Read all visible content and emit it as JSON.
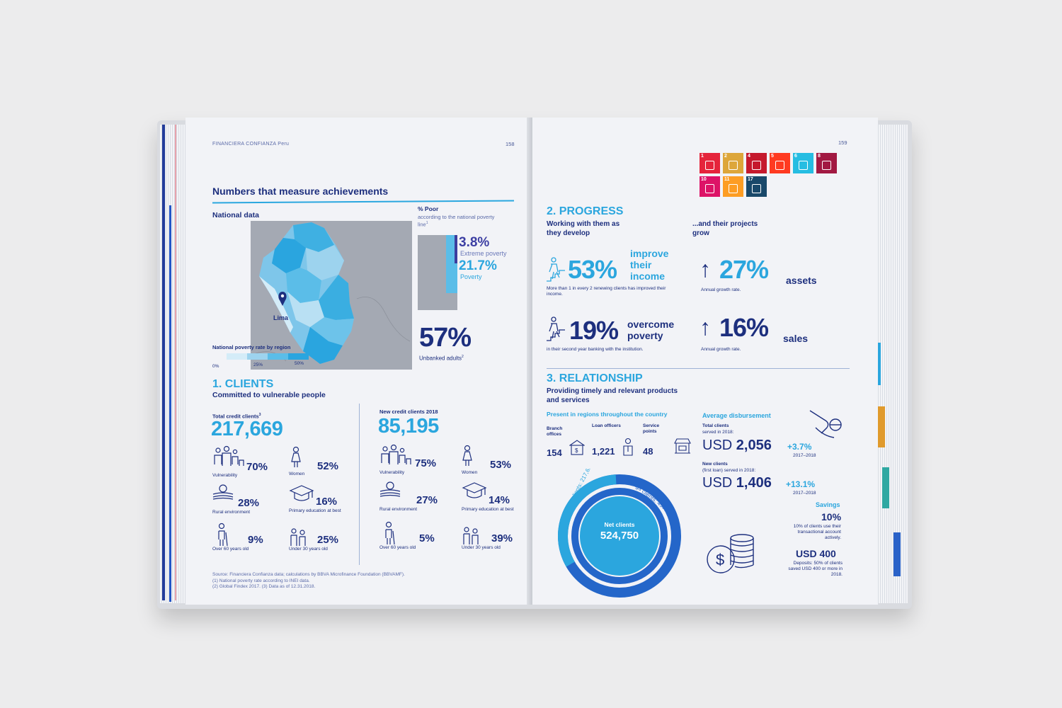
{
  "left_page": {
    "header": "FINANCIERA CONFIANZA Peru",
    "page_number": "158",
    "title": "Numbers that measure achievements",
    "national_data": "National data",
    "map": {
      "city_label": "Lima",
      "legend_title": "National poverty rate by region",
      "legend_ticks": [
        "0%",
        "25%",
        "50%"
      ]
    },
    "poor": {
      "heading": "% Poor",
      "subheading": "according to the national poverty line",
      "footnote_mark": "1",
      "extreme_value": "3.8%",
      "extreme_label": "Extreme poverty",
      "poverty_value": "21.7%",
      "poverty_label": "Poverty",
      "extreme_fraction": 0.038,
      "poverty_fraction": 0.217
    },
    "unbanked": {
      "value": "57%",
      "label": "Unbanked adults",
      "footnote_mark": "2"
    },
    "clients": {
      "section": "1. CLIENTS",
      "subtitle": "Committed to vulnerable people",
      "total": {
        "label": "Total credit clients",
        "footnote_mark": "3",
        "value": "217,669",
        "stats": [
          {
            "value": "70%",
            "label": "Vulnerability"
          },
          {
            "value": "52%",
            "label": "Women"
          },
          {
            "value": "28%",
            "label": "Rural environment"
          },
          {
            "value": "16%",
            "label": "Primary education at best"
          },
          {
            "value": "9%",
            "label": "Over 60 years old"
          },
          {
            "value": "25%",
            "label": "Under 30 years old"
          }
        ]
      },
      "new": {
        "label": "New credit clients 2018",
        "value": "85,195",
        "stats": [
          {
            "value": "75%",
            "label": "Vulnerability"
          },
          {
            "value": "53%",
            "label": "Women"
          },
          {
            "value": "27%",
            "label": "Rural environment"
          },
          {
            "value": "14%",
            "label": "Primary education at best"
          },
          {
            "value": "5%",
            "label": "Over 60 years old"
          },
          {
            "value": "39%",
            "label": "Under 30 years old"
          }
        ]
      }
    },
    "sources": [
      "Source: Financiera Confianza data; calculations by BBVA Microfinance Foundation (BBVAMF).",
      "(1) National poverty rate according to INEI data.",
      "(2) Global Findex 2017.  (3) Data as of 12.31.2018."
    ]
  },
  "right_page": {
    "page_number": "159",
    "sdg_icons": [
      {
        "num": "1",
        "color": "#e5243b",
        "icon": "no-poverty-icon"
      },
      {
        "num": "2",
        "color": "#dda63a",
        "icon": "zero-hunger-icon"
      },
      {
        "num": "4",
        "color": "#c5192d",
        "icon": "quality-education-icon"
      },
      {
        "num": "5",
        "color": "#ff3a21",
        "icon": "gender-equality-icon"
      },
      {
        "num": "6",
        "color": "#26bde2",
        "icon": "clean-water-icon"
      },
      {
        "num": "8",
        "color": "#a21942",
        "icon": "decent-work-icon"
      },
      {
        "num": "10",
        "color": "#dd1367",
        "icon": "reduced-inequalities-icon"
      },
      {
        "num": "11",
        "color": "#fd9d24",
        "icon": "sustainable-cities-icon"
      },
      {
        "num": "17",
        "color": "#19486a",
        "icon": "partnerships-icon"
      }
    ],
    "progress": {
      "section": "2. PROGRESS",
      "subtitle": "Working with them as they develop",
      "right_subtitle": "...and their projects grow",
      "income_value": "53%",
      "income_label": "improve their income",
      "income_note": "More than 1 in every 2 renewing clients has improved their income.",
      "poverty_value": "19%",
      "poverty_label": "overcome poverty",
      "poverty_note": "in their second year banking with the institution.",
      "assets_value": "27%",
      "assets_label": "assets",
      "assets_note": "Annual growth rate.",
      "sales_value": "16%",
      "sales_label": "sales",
      "sales_note": "Annual growth rate."
    },
    "relationship": {
      "section": "3. RELATIONSHIP",
      "subtitle": "Providing timely and relevant products and services",
      "regions": "Present in regions throughout the country",
      "branch_label": "Branch offices",
      "branch_value": "154",
      "officers_label": "Loan officers",
      "officers_value": "1,221",
      "points_label": "Service points",
      "points_value": "48",
      "donut": {
        "center_label": "Net clients",
        "center_value": "524,750",
        "credit_label": "Credit clients: 217,669",
        "savings_label": "Savings clients: 455,485",
        "credit_value": 217669,
        "savings_value": 455485
      },
      "avg_title": "Average disbursement",
      "total_label": "Total clients",
      "total_sub": "served in 2018:",
      "total_currency": "USD",
      "total_value": "2,056",
      "total_growth": "+3.7%",
      "total_period": "2017–2018",
      "new_label": "New clients",
      "new_sub": "(first loan) served in 2018:",
      "new_currency": "USD",
      "new_value": "1,406",
      "new_growth": "+13.1%",
      "new_period": "2017–2018",
      "savings_title": "Savings",
      "savings_pct": "10%",
      "savings_note": "10% of clients use their transactional account actively.",
      "deposit_value": "USD 400",
      "deposit_note": "Deposits: 50% of clients saved USD 400 or more in 2018."
    }
  }
}
